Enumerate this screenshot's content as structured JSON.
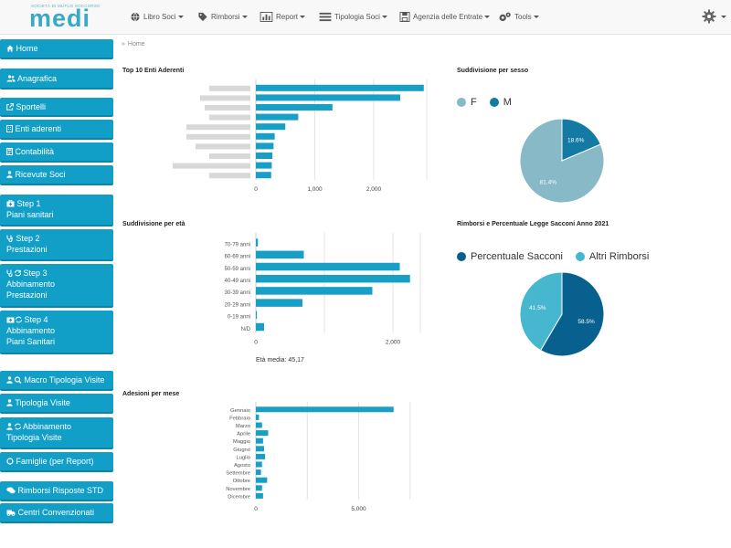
{
  "app": {
    "logo_tagline": "SOCIETÀ DI MUTUO SOCCORSO",
    "logo_word": "medi"
  },
  "nav": [
    {
      "label": "Libro Soci",
      "icon": "globe-icon"
    },
    {
      "label": "Rimborsi",
      "icon": "tag-icon"
    },
    {
      "label": "Report",
      "icon": "bar-chart-icon"
    },
    {
      "label": "Tipologia Soci",
      "icon": "list-icon"
    },
    {
      "label": "Agenzia delle Entrate",
      "icon": "save-icon"
    },
    {
      "label": "Tools",
      "icon": "cogs-icon"
    }
  ],
  "settings_icon": "gear-icon",
  "sidebar": [
    {
      "label": "Home",
      "icon": "home-icon"
    },
    {
      "label": "Anagrafica",
      "icon": "users-icon"
    },
    {
      "label": "Sportelli",
      "icon": "external-link-icon"
    },
    {
      "label": "Enti aderenti",
      "icon": "building-icon"
    },
    {
      "label": "Contabilità",
      "icon": "calculator-icon"
    },
    {
      "label": "Ricevute Soci",
      "icon": "user-icon"
    },
    {
      "label": "Step 1\nPiani sanitari",
      "icon": "medkit-icon"
    },
    {
      "label": "Step 2\nPrestazioni",
      "icon": "stethoscope-icon"
    },
    {
      "label": "Step 3\nAbbinamento\nPrestazioni",
      "icon": "stethoscope-refresh-icon"
    },
    {
      "label": "Step 4\nAbbinamento\nPiani Sanitari",
      "icon": "medkit-refresh-icon"
    },
    {
      "label": "Macro Tipologia Visite",
      "icon": "user-search-icon"
    },
    {
      "label": "Tipologia Visite",
      "icon": "user-icon"
    },
    {
      "label": "Abbinamento\nTipologia Visite",
      "icon": "user-refresh-icon"
    },
    {
      "label": "Famiglie (per Report)",
      "icon": "circle-icon"
    },
    {
      "label": "Rimborsi Risposte STD",
      "icon": "comments-icon"
    },
    {
      "label": "Centri Convenzionati",
      "icon": "ambulance-icon"
    }
  ],
  "breadcrumb": {
    "sep": "»",
    "label": "Home"
  },
  "colors": {
    "bar": "#179fc6",
    "female": "#87b9c6",
    "male": "#137aa4",
    "sacconi": "#08608f",
    "altri": "#47b6cf",
    "sidebar": "#119fc8"
  },
  "charts": {
    "top_enti": {
      "title": "Top 10 Enti Aderenti",
      "chart_data": {
        "type": "bar",
        "orientation": "horizontal",
        "title": "Top 10 Enti Aderenti",
        "categories_redacted": true,
        "values": [
          2850,
          2450,
          1300,
          720,
          500,
          320,
          300,
          280,
          270,
          260
        ],
        "xticks": [
          "0",
          "1,000",
          "2,000"
        ],
        "xlim": [
          0,
          2900
        ]
      }
    },
    "sesso": {
      "title": "Suddivisione per sesso",
      "chart_data": {
        "type": "pie",
        "title": "Suddivisione per sesso",
        "series": [
          {
            "name": "F",
            "value": 81.4,
            "label": "81.4%",
            "color": "#87b9c6"
          },
          {
            "name": "M",
            "value": 18.6,
            "label": "18.6%",
            "color": "#137aa4"
          }
        ],
        "legend": "top-left"
      }
    },
    "eta": {
      "title": "Suddivisione per età",
      "chart_data": {
        "type": "bar",
        "orientation": "horizontal",
        "title": "Suddivisione per età",
        "categories": [
          "70-79 anni",
          "60-69 anni",
          "50-59 anni",
          "40-49 anni",
          "30-39 anni",
          "20-29 anni",
          "0-19 anni",
          "N/D"
        ],
        "values": [
          30,
          700,
          2100,
          2250,
          1700,
          680,
          15,
          120
        ],
        "xticks": [
          "0",
          "2,000"
        ],
        "xlim": [
          0,
          2400
        ]
      },
      "footer": "Età media: 45,17"
    },
    "rimborsi": {
      "title": "Rimborsi e Percentuale Legge Sacconi Anno 2021",
      "chart_data": {
        "type": "pie",
        "title": "Rimborsi e Percentuale Legge Sacconi Anno 2021",
        "series": [
          {
            "name": "Percentuale Sacconi",
            "value": 58.5,
            "label": "58.5%",
            "color": "#08608f"
          },
          {
            "name": "Altri Rimborsi",
            "value": 41.5,
            "label": "41.5%",
            "color": "#47b6cf"
          }
        ],
        "legend": "top-left"
      }
    },
    "mesi": {
      "title": "Adesioni per mese",
      "chart_data": {
        "type": "bar",
        "orientation": "horizontal",
        "title": "Adesioni per mese",
        "categories": [
          "Gennaio",
          "Febbraio",
          "Marzo",
          "Aprile",
          "Maggio",
          "Giugno",
          "Luglio",
          "Agosto",
          "Settembre",
          "Ottobre",
          "Novembre",
          "Dicembre"
        ],
        "values": [
          6700,
          150,
          300,
          600,
          350,
          400,
          450,
          300,
          250,
          550,
          300,
          350
        ],
        "xticks": [
          "0",
          "5,000"
        ],
        "xlim": [
          0,
          8000
        ]
      }
    }
  }
}
